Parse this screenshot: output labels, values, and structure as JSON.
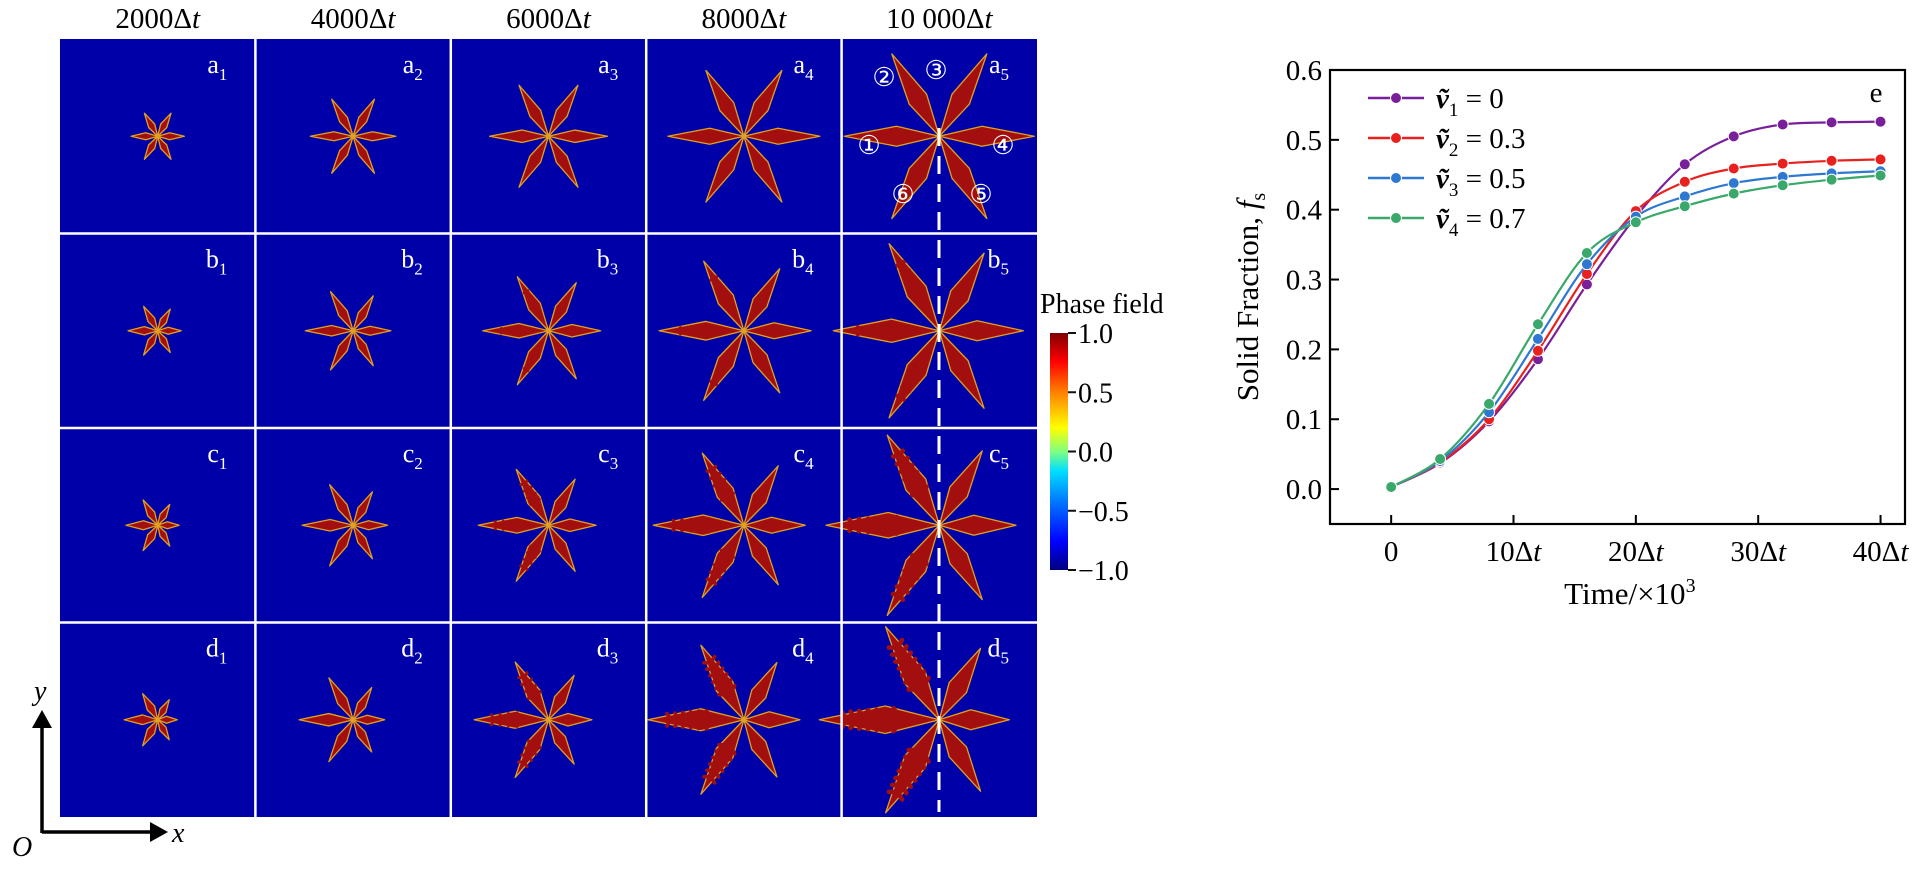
{
  "columns": [
    {
      "num": "2000",
      "unit": "Δ",
      "var": "t"
    },
    {
      "num": "4000",
      "unit": "Δ",
      "var": "t"
    },
    {
      "num": "6000",
      "unit": "Δ",
      "var": "t"
    },
    {
      "num": "8000",
      "unit": "Δ",
      "var": "t"
    },
    {
      "num": "10 000",
      "unit": "Δ",
      "var": "t"
    }
  ],
  "rows": [
    "a",
    "b",
    "c",
    "d"
  ],
  "panel_subscripts": [
    "1",
    "2",
    "3",
    "4",
    "5"
  ],
  "arm_markers": [
    "①",
    "②",
    "③",
    "④",
    "⑤",
    "⑥"
  ],
  "colorbar": {
    "title": "Phase field",
    "ticks": [
      "1.0",
      "0.5",
      "0.0",
      "−0.5",
      "−1.0"
    ],
    "range": [
      -1.0,
      1.0
    ]
  },
  "axes_arrows": {
    "x": "x",
    "y": "y",
    "origin": "O"
  },
  "colors": {
    "background": "#0000a8",
    "dendrite": "#a30f0f",
    "dendrite_edge": "#e0a020",
    "grid_line": "#ffffff"
  },
  "chart_data": {
    "type": "line",
    "panel_label": "e",
    "ylabel": "Solid Fraction, f",
    "ylabel_sub": "s",
    "xlabel": "Time/×10",
    "xlabel_sup": "3",
    "xlim": [
      -5,
      42
    ],
    "ylim": [
      -0.05,
      0.6
    ],
    "xticks": [
      {
        "value": 0,
        "label": "0"
      },
      {
        "value": 10,
        "label": "10Δt"
      },
      {
        "value": 20,
        "label": "20Δt"
      },
      {
        "value": 30,
        "label": "30Δt"
      },
      {
        "value": 40,
        "label": "40Δt"
      }
    ],
    "yticks": [
      {
        "value": 0.0,
        "label": "0.0"
      },
      {
        "value": 0.1,
        "label": "0.1"
      },
      {
        "value": 0.2,
        "label": "0.2"
      },
      {
        "value": 0.3,
        "label": "0.3"
      },
      {
        "value": 0.4,
        "label": "0.4"
      },
      {
        "value": 0.5,
        "label": "0.5"
      },
      {
        "value": 0.6,
        "label": "0.6"
      }
    ],
    "x": [
      0,
      4,
      8,
      12,
      16,
      20,
      24,
      28,
      32,
      36,
      40
    ],
    "series": [
      {
        "name": "ṽ",
        "sub": "1",
        "eq": " = 0",
        "color": "#7a1f9a",
        "values": [
          0.003,
          0.037,
          0.097,
          0.186,
          0.293,
          0.39,
          0.465,
          0.505,
          0.522,
          0.525,
          0.526
        ]
      },
      {
        "name": "ṽ",
        "sub": "2",
        "eq": " = 0.3",
        "color": "#e8211f",
        "values": [
          0.003,
          0.038,
          0.1,
          0.198,
          0.308,
          0.398,
          0.44,
          0.459,
          0.466,
          0.47,
          0.472
        ]
      },
      {
        "name": "ṽ",
        "sub": "3",
        "eq": " = 0.5",
        "color": "#2f78d2",
        "values": [
          0.003,
          0.04,
          0.11,
          0.215,
          0.322,
          0.39,
          0.419,
          0.438,
          0.447,
          0.452,
          0.455
        ]
      },
      {
        "name": "ṽ",
        "sub": "4",
        "eq": " = 0.7",
        "color": "#3aa86a",
        "values": [
          0.003,
          0.043,
          0.122,
          0.236,
          0.338,
          0.382,
          0.405,
          0.423,
          0.435,
          0.443,
          0.449
        ]
      }
    ]
  }
}
